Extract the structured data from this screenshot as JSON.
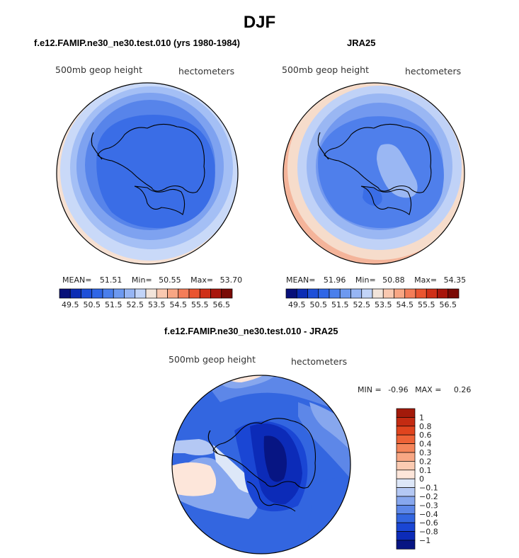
{
  "figure": {
    "title": "DJF"
  },
  "chart_data": [
    {
      "type": "heatmap",
      "title": "f.e12.FAMIP.ne30_ne30.test.010 (yrs 1980-1984)",
      "variable_label": "500mb geop height",
      "units_label": "hectometers",
      "stats": {
        "mean_label": "MEAN=",
        "mean": "51.51",
        "min_label": "Min=",
        "min": "50.55",
        "max_label": "Max=",
        "max": "53.70"
      },
      "colorbar": {
        "tick_labels": [
          "49.5",
          "50.5",
          "51.5",
          "52.5",
          "53.5",
          "54.5",
          "55.5",
          "56.5"
        ],
        "levels": [
          49.5,
          50.0,
          50.5,
          51.0,
          51.5,
          52.0,
          52.5,
          53.0,
          53.5,
          54.0,
          54.5,
          55.0,
          55.5,
          56.0,
          56.5
        ],
        "colors": [
          "#08107a",
          "#0c2db4",
          "#1d4fd8",
          "#2f66e6",
          "#4a7fec",
          "#6d99f0",
          "#96b5f4",
          "#c2d4f8",
          "#f2e4da",
          "#f9c8b0",
          "#f8a684",
          "#f47d58",
          "#ea5530",
          "#cf2f17",
          "#a8150b",
          "#7a0a05"
        ]
      }
    },
    {
      "type": "heatmap",
      "title": "JRA25",
      "variable_label": "500mb geop height",
      "units_label": "hectometers",
      "stats": {
        "mean_label": "MEAN=",
        "mean": "51.96",
        "min_label": "Min=",
        "min": "50.88",
        "max_label": "Max=",
        "max": "54.35"
      },
      "colorbar": {
        "tick_labels": [
          "49.5",
          "50.5",
          "51.5",
          "52.5",
          "53.5",
          "54.5",
          "55.5",
          "56.5"
        ],
        "levels": [
          49.5,
          50.0,
          50.5,
          51.0,
          51.5,
          52.0,
          52.5,
          53.0,
          53.5,
          54.0,
          54.5,
          55.0,
          55.5,
          56.0,
          56.5
        ],
        "colors": [
          "#08107a",
          "#0c2db4",
          "#1d4fd8",
          "#2f66e6",
          "#4a7fec",
          "#6d99f0",
          "#96b5f4",
          "#c2d4f8",
          "#f2e4da",
          "#f9c8b0",
          "#f8a684",
          "#f47d58",
          "#ea5530",
          "#cf2f17",
          "#a8150b",
          "#7a0a05"
        ]
      }
    },
    {
      "type": "heatmap",
      "title": "f.e12.FAMIP.ne30_ne30.test.010 - JRA25",
      "variable_label": "500mb geop height",
      "units_label": "hectometers",
      "stats": {
        "min_label": "MIN =",
        "min": "-0.96",
        "max_label": "MAX =",
        "max": "0.26"
      },
      "colorbar": {
        "tick_labels": [
          "1",
          "0.8",
          "0.6",
          "0.4",
          "0.3",
          "0.2",
          "0.1",
          "0",
          "−0.1",
          "−0.2",
          "−0.3",
          "−0.4",
          "−0.6",
          "−0.8",
          "−1"
        ],
        "levels": [
          1,
          0.8,
          0.6,
          0.4,
          0.3,
          0.2,
          0.1,
          0,
          -0.1,
          -0.2,
          -0.3,
          -0.4,
          -0.6,
          -0.8,
          -1
        ],
        "colors": [
          "#a31a0a",
          "#c42b12",
          "#e0441e",
          "#ee6236",
          "#f5855a",
          "#f8a784",
          "#fbcbb2",
          "#fde6da",
          "#dde7f8",
          "#b4c8f4",
          "#87a7ee",
          "#5d87e8",
          "#3366e0",
          "#1a46d4",
          "#0c2bb8",
          "#071583"
        ]
      }
    }
  ]
}
